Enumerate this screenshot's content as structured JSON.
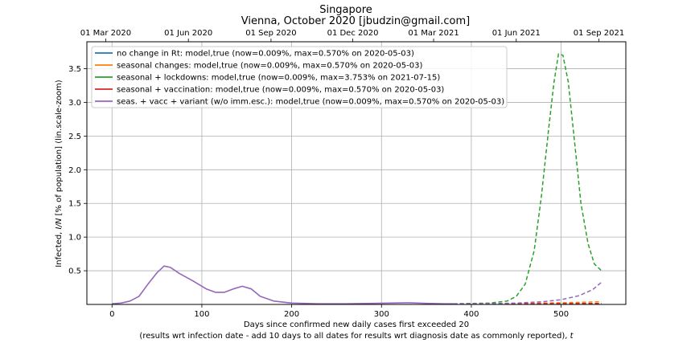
{
  "chart_data": {
    "type": "line",
    "title": "Singapore",
    "subtitle": "Vienna, October 2020 [jbudzin@gmail.com]",
    "xlabel": "Days since confirmed new daily cases first exceeded 20",
    "xlabel_note_pre": "(results wrt infection date - add 10 days to all dates for results wrt diagnosis date as commonly reported), ",
    "xlabel_note_var": "t",
    "ylabel_pre": "Infected, ",
    "ylabel_var": "I/N",
    "ylabel_post": " [% of population] (lin.scale-zoom)",
    "xlim": [
      -28,
      572
    ],
    "ylim": [
      0,
      3.9
    ],
    "x_ticks": [
      0,
      100,
      200,
      300,
      400,
      500
    ],
    "y_ticks": [
      0.5,
      1.0,
      1.5,
      2.0,
      2.5,
      3.0,
      3.5
    ],
    "y_tick_labels": [
      "0.5",
      "1.0",
      "1.5",
      "2.0",
      "2.5",
      "3.0",
      "3.5"
    ],
    "top_axis": {
      "ticks": [
        -7,
        85,
        177,
        268,
        358,
        450,
        542
      ],
      "labels": [
        "01 Mar 2020",
        "01 Jun 2020",
        "01 Sep 2020",
        "01 Dec 2020",
        "01 Mar 2021",
        "01 Jun 2021",
        "01 Sep 2021"
      ]
    },
    "grid": true,
    "legend_position": "upper-left",
    "colors": {
      "blue": "#1f77b4",
      "orange": "#ff7f0e",
      "green": "#2ca02c",
      "red": "#d62728",
      "purple": "#9467bd",
      "grid": "#b0b0b0"
    },
    "history_end_x": 380,
    "series": [
      {
        "name": "no change in Rt: model,true (now=0.009%, max=0.570% on 2020-05-03)",
        "color": "#1f77b4",
        "x": [
          380,
          450,
          500,
          545
        ],
        "y": [
          0.009,
          0.01,
          0.012,
          0.015
        ]
      },
      {
        "name": "seasonal changes: model,true (now=0.009%, max=0.570% on 2020-05-03)",
        "color": "#ff7f0e",
        "x": [
          380,
          420,
          460,
          500,
          530,
          545
        ],
        "y": [
          0.009,
          0.01,
          0.015,
          0.025,
          0.035,
          0.04
        ]
      },
      {
        "name": "seasonal + lockdowns: model,true (now=0.009%, max=3.753% on 2021-07-15)",
        "color": "#2ca02c",
        "x": [
          380,
          420,
          440,
          450,
          460,
          470,
          478,
          486,
          492,
          497,
          502,
          508,
          515,
          522,
          530,
          537,
          545
        ],
        "y": [
          0.009,
          0.02,
          0.05,
          0.12,
          0.3,
          0.8,
          1.6,
          2.6,
          3.3,
          3.72,
          3.7,
          3.3,
          2.4,
          1.5,
          0.9,
          0.6,
          0.5
        ]
      },
      {
        "name": "seasonal + vaccination: model,true (now=0.009%, max=0.570% on 2020-05-03)",
        "color": "#d62728",
        "x": [
          380,
          450,
          500,
          545
        ],
        "y": [
          0.009,
          0.01,
          0.012,
          0.015
        ]
      },
      {
        "name": "seas. + vacc + variant (w/o imm.esc.): model,true (now=0.009%, max=0.570% on 2020-05-03)",
        "color": "#9467bd",
        "x": [
          380,
          420,
          450,
          480,
          500,
          520,
          535,
          545
        ],
        "y": [
          0.009,
          0.012,
          0.02,
          0.04,
          0.07,
          0.13,
          0.22,
          0.33
        ]
      }
    ],
    "history": {
      "color": "#9467bd",
      "x": [
        0,
        10,
        20,
        30,
        40,
        50,
        58,
        65,
        75,
        90,
        105,
        115,
        125,
        135,
        145,
        155,
        165,
        180,
        200,
        230,
        260,
        290,
        310,
        330,
        350,
        370,
        380
      ],
      "y": [
        0.01,
        0.02,
        0.05,
        0.12,
        0.3,
        0.47,
        0.57,
        0.55,
        0.46,
        0.35,
        0.23,
        0.18,
        0.18,
        0.23,
        0.27,
        0.23,
        0.12,
        0.05,
        0.02,
        0.01,
        0.01,
        0.015,
        0.02,
        0.025,
        0.015,
        0.01,
        0.009
      ]
    }
  }
}
